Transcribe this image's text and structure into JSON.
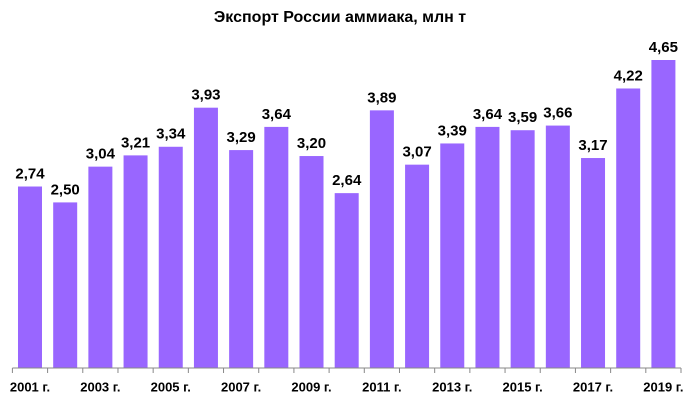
{
  "chart_data": {
    "type": "bar",
    "title": "Экспорт России аммиака, млн т",
    "categories": [
      "2001 г.",
      null,
      "2003 г.",
      null,
      "2005 г.",
      null,
      "2007 г.",
      null,
      "2009 г.",
      null,
      "2011 г.",
      null,
      "2013 г.",
      null,
      "2015 г.",
      null,
      "2017 г.",
      null,
      "2019 г."
    ],
    "values": [
      2.74,
      2.5,
      3.04,
      3.21,
      3.34,
      3.93,
      3.29,
      3.64,
      3.2,
      2.64,
      3.89,
      3.07,
      3.39,
      3.64,
      3.59,
      3.66,
      3.17,
      4.22,
      4.65
    ],
    "value_labels": [
      "2,74",
      "2,50",
      "3,04",
      "3,21",
      "3,34",
      "3,93",
      "3,29",
      "3,64",
      "3,20",
      "2,64",
      "3,89",
      "3,07",
      "3,39",
      "3,64",
      "3,59",
      "3,66",
      "3,17",
      "4,22",
      "4,65"
    ],
    "color": "#9966ff"
  }
}
